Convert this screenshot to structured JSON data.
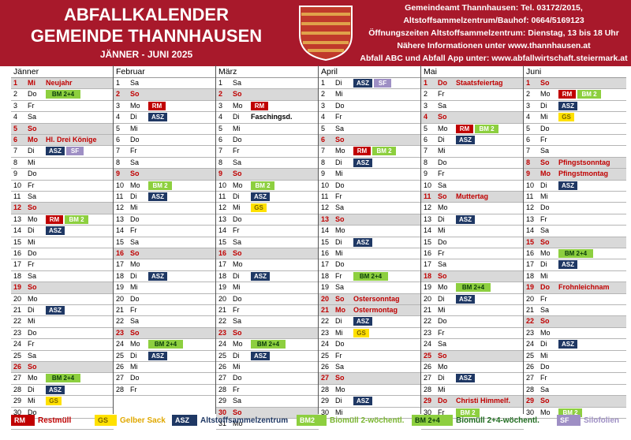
{
  "header": {
    "title1": "ABFALLKALENDER",
    "title2": "GEMEINDE THANNHAUSEN",
    "subtitle": "JÄNNER - JUNI 2025",
    "info": [
      "Gemeindeamt Thannhausen: Tel. 03172/2015,",
      "Altstoffsammelzentrum/Bauhof: 0664/5169123",
      "Öffnungszeiten Altstoffsammelzentrum: Dienstag, 13 bis 18 Uhr",
      "Nähere Informationen unter www.thannhausen.at",
      "Abfall ABC und Abfall App unter: www.abfallwirtschaft.steiermark.at"
    ]
  },
  "colors": {
    "red": "#a8192b",
    "RM": "#c00000",
    "ASZ": "#1f3864",
    "GS": "#ffe100",
    "BM": "#8dcf3f",
    "SF": "#9e8fc4"
  },
  "months": [
    {
      "name": "Jänner",
      "start": 2,
      "days": 31,
      "holidays": {
        "1": "Neujahr",
        "6": "Hl. Drei Könige"
      },
      "events": {
        "2": [
          "BM24"
        ],
        "7": [
          "ASZ",
          "SF"
        ],
        "13": [
          "RM",
          "BM2"
        ],
        "14": [
          "ASZ"
        ],
        "21": [
          "ASZ"
        ],
        "27": [
          "BM24"
        ],
        "28": [
          "ASZ"
        ],
        "29": [
          "GS"
        ]
      },
      "notes": {}
    },
    {
      "name": "Februar",
      "start": 5,
      "days": 28,
      "holidays": {},
      "events": {
        "3": [
          "RM"
        ],
        "4": [
          "ASZ"
        ],
        "10": [
          "BM2"
        ],
        "11": [
          "ASZ"
        ],
        "18": [
          "ASZ"
        ],
        "24": [
          "BM24"
        ],
        "25": [
          "ASZ"
        ]
      },
      "notes": {}
    },
    {
      "name": "März",
      "start": 5,
      "days": 31,
      "holidays": {},
      "events": {
        "3": [
          "RM"
        ],
        "10": [
          "BM2"
        ],
        "11": [
          "ASZ"
        ],
        "12": [
          "GS"
        ],
        "18": [
          "ASZ"
        ],
        "24": [
          "BM24"
        ],
        "25": [
          "ASZ"
        ]
      },
      "notes": {
        "4": "Faschingsd."
      }
    },
    {
      "name": "April",
      "start": 1,
      "days": 30,
      "holidays": {
        "20": "Ostersonntag",
        "21": "Ostermontag"
      },
      "events": {
        "1": [
          "ASZ",
          "SF"
        ],
        "7": [
          "RM",
          "BM2"
        ],
        "8": [
          "ASZ"
        ],
        "15": [
          "ASZ"
        ],
        "18": [
          "BM24"
        ],
        "22": [
          "ASZ"
        ],
        "23": [
          "GS"
        ],
        "29": [
          "ASZ"
        ]
      },
      "notes": {}
    },
    {
      "name": "Mai",
      "start": 3,
      "days": 31,
      "holidays": {
        "1": "Staatsfeiertag",
        "11": "Muttertag",
        "29": "Christi Himmelf."
      },
      "events": {
        "5": [
          "RM",
          "BM2"
        ],
        "6": [
          "ASZ"
        ],
        "13": [
          "ASZ"
        ],
        "19": [
          "BM24"
        ],
        "20": [
          "ASZ"
        ],
        "27": [
          "ASZ"
        ],
        "30": [
          "BM2"
        ]
      },
      "notes": {}
    },
    {
      "name": "Juni",
      "start": 6,
      "days": 30,
      "holidays": {
        "8": "Pfingstsonntag",
        "9": "Pfingstmontag",
        "19": "Frohnleichnam"
      },
      "events": {
        "2": [
          "RM",
          "BM2"
        ],
        "3": [
          "ASZ"
        ],
        "4": [
          "GS"
        ],
        "10": [
          "ASZ"
        ],
        "16": [
          "BM24"
        ],
        "17": [
          "ASZ"
        ],
        "24": [
          "ASZ"
        ],
        "30": [
          "BM2"
        ]
      },
      "notes": {}
    }
  ],
  "weekdays": [
    "Mo",
    "Di",
    "Mi",
    "Do",
    "Fr",
    "Sa",
    "So"
  ],
  "badges": {
    "RM": "RM",
    "ASZ": "ASZ",
    "SF": "SF",
    "GS": "GS",
    "BM2": "BM 2",
    "BM24": "BM 2+4"
  },
  "legend": [
    {
      "key": "RM",
      "badge": "RM",
      "label": "Restmüll",
      "color": "#c00000"
    },
    {
      "key": "GS",
      "badge": "GS",
      "label": "Gelber Sack",
      "color": "#e0a800"
    },
    {
      "key": "ASZ",
      "badge": "ASZ",
      "label": "Altstoffsammelzentrum",
      "color": "#1f3864"
    },
    {
      "key": "BM2",
      "badge": "BM2",
      "label": "Biomüll 2-wöchentl.",
      "color": "#7ab530"
    },
    {
      "key": "BM24",
      "badge": "BM 2+4",
      "label": "Biomüll 2+4-wöchentl.",
      "color": "#1e6b1e"
    },
    {
      "key": "SF",
      "badge": "SF",
      "label": "Silofolien",
      "color": "#9e8fc4"
    }
  ]
}
